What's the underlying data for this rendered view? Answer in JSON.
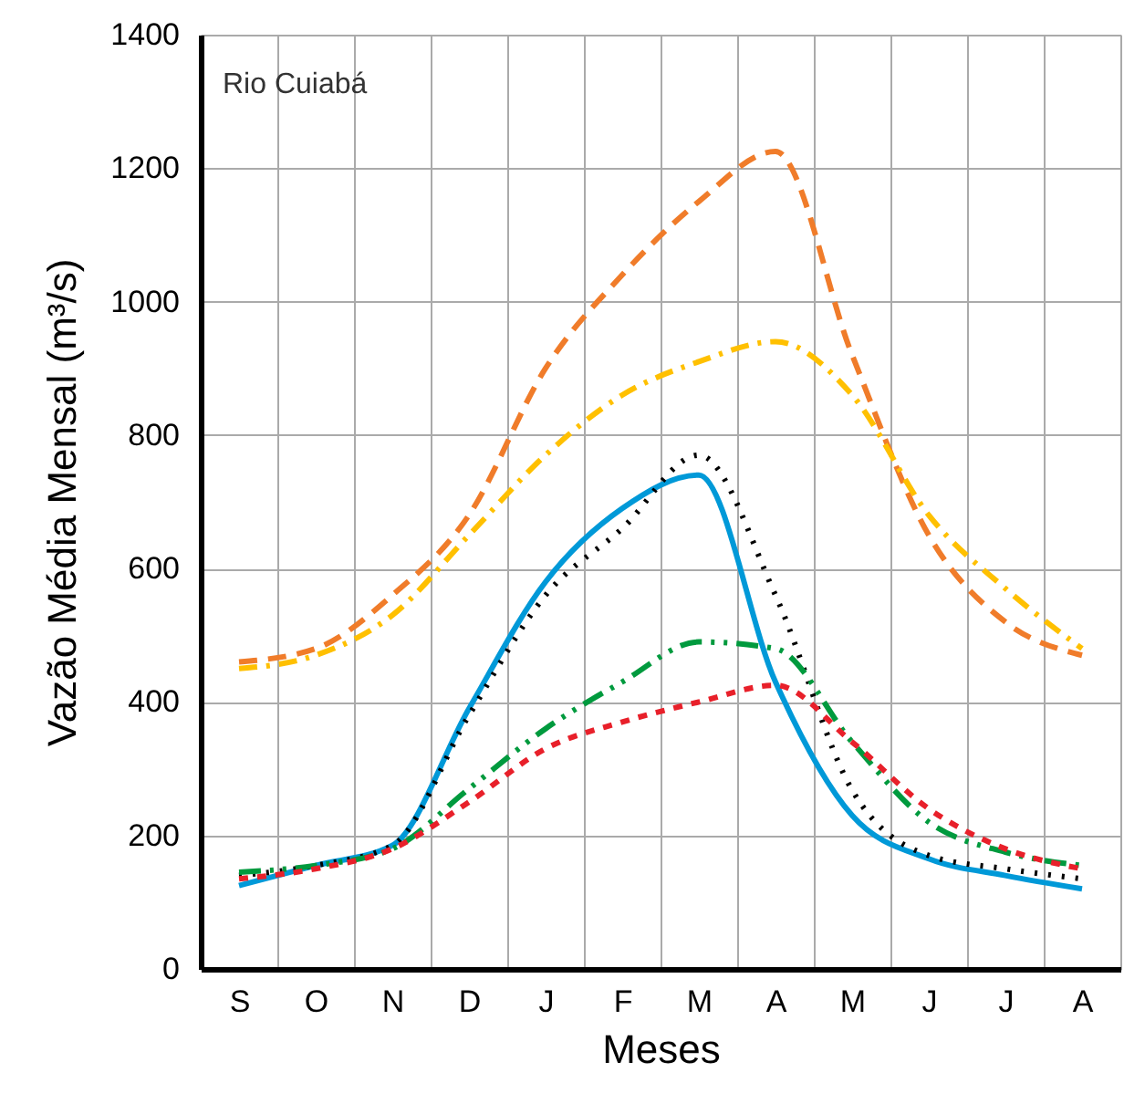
{
  "chart_data": {
    "type": "line",
    "xlabel": "Meses",
    "ylabel": "Vazão Média Mensal (m³/s)",
    "annotations": [
      "Rio Cuiabá"
    ],
    "categories": [
      "S",
      "O",
      "N",
      "D",
      "J",
      "F",
      "M",
      "A",
      "M",
      "J",
      "J",
      "A"
    ],
    "ylim": [
      0,
      1400
    ],
    "yticks": [
      0,
      200,
      400,
      600,
      800,
      1000,
      1200,
      1400
    ],
    "grid": true,
    "series": [
      {
        "color": "#f07c2a",
        "line_style": "dashed",
        "values": [
          460,
          480,
          560,
          680,
          900,
          1040,
          1150,
          1225,
          920,
          650,
          520,
          470
        ]
      },
      {
        "color": "#ffc000",
        "line_style": "dashdot",
        "values": [
          450,
          470,
          530,
          650,
          770,
          860,
          910,
          940,
          860,
          680,
          570,
          480
        ]
      },
      {
        "color": "#0099d8",
        "line_style": "solid",
        "values": [
          125,
          155,
          185,
          390,
          580,
          690,
          740,
          430,
          230,
          165,
          140,
          120
        ]
      },
      {
        "color": "#000000",
        "line_style": "dotted",
        "values": [
          140,
          155,
          185,
          380,
          560,
          660,
          770,
          560,
          268,
          170,
          150,
          135
        ]
      },
      {
        "color": "#009a3e",
        "line_style": "dashdotdot",
        "values": [
          145,
          155,
          180,
          270,
          360,
          430,
          490,
          480,
          340,
          220,
          175,
          155
        ]
      },
      {
        "color": "#e8202a",
        "line_style": "shortdash",
        "values": [
          135,
          150,
          180,
          250,
          330,
          370,
          400,
          425,
          340,
          240,
          180,
          150
        ]
      }
    ]
  }
}
